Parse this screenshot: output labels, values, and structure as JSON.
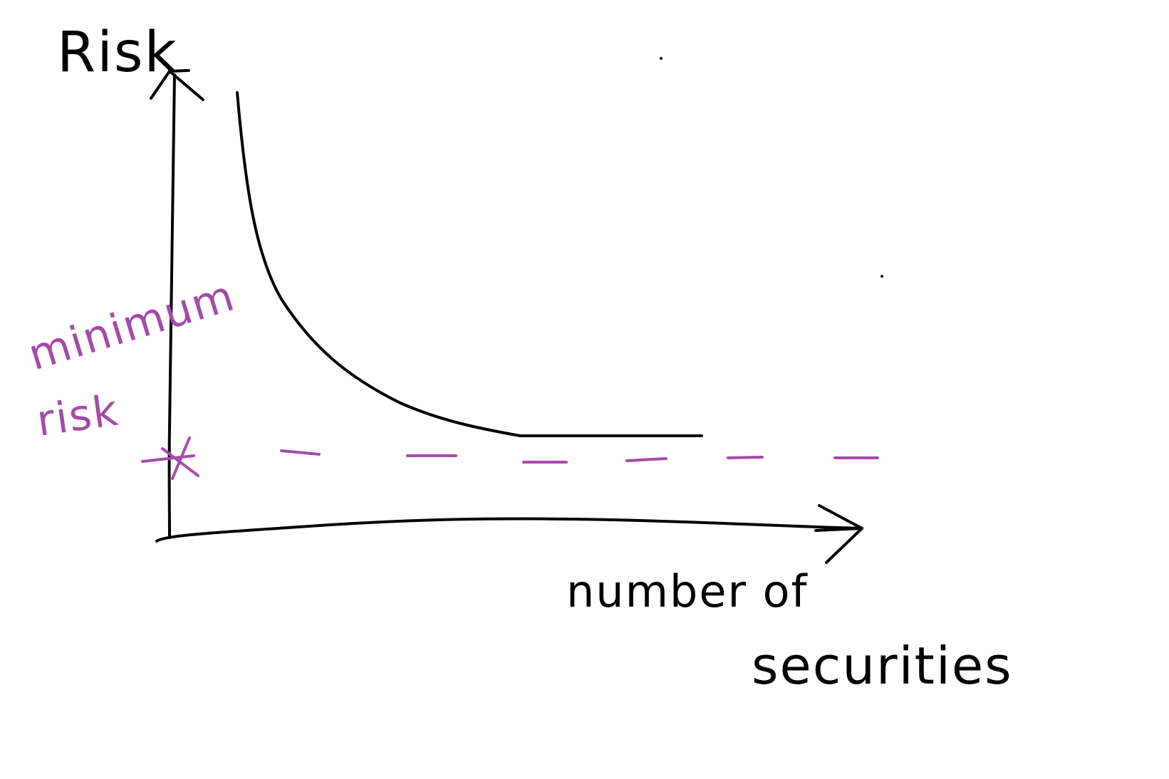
{
  "labels": {
    "y_axis": "Risk",
    "x_axis_line1": "number of",
    "x_axis_line2": "securities",
    "annotation_line1": "minimum",
    "annotation_line2": "risk"
  },
  "colors": {
    "ink": "#000000",
    "annotation": "#a54aa9",
    "background": "#ffffff"
  }
}
